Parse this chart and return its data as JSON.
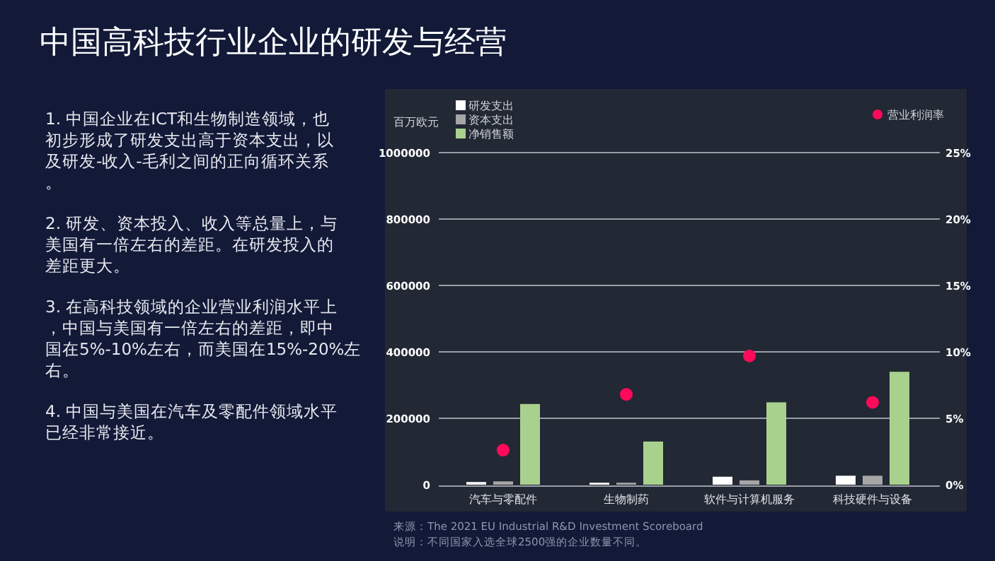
{
  "chart_data": {
    "type": "bar",
    "title": "中国高科技行业企业的研发与经营",
    "ylabel": "百万欧元",
    "categories": [
      "汽车与零配件",
      "生物制药",
      "软件与计算机服务",
      "科技硬件与设备"
    ],
    "series": [
      {
        "name": "研发支出",
        "color": "#ffffff",
        "values": [
          8000,
          6000,
          24000,
          27000
        ]
      },
      {
        "name": "资本支出",
        "color": "#a6a6a6",
        "values": [
          10000,
          6000,
          13000,
          27000
        ]
      },
      {
        "name": "净销售额",
        "color": "#a9d18e",
        "values": [
          243000,
          130000,
          248000,
          340000
        ]
      },
      {
        "name": "营业利润率",
        "type": "scatter",
        "axis": "y2",
        "color": "#ff0a5a",
        "values": [
          2.6,
          6.8,
          9.7,
          6.2
        ]
      }
    ],
    "ylim": [
      0,
      1000000
    ],
    "yticks": [
      0,
      200000,
      400000,
      600000,
      800000,
      1000000
    ],
    "y2lim": [
      0,
      25
    ],
    "y2ticks": [
      {
        "value": 0,
        "label": "0%"
      },
      {
        "value": 5,
        "label": "5%"
      },
      {
        "value": 10,
        "label": "10%"
      },
      {
        "value": 15,
        "label": "15%"
      },
      {
        "value": 20,
        "label": "20%"
      },
      {
        "value": 25,
        "label": "25%"
      }
    ],
    "grid": "y",
    "legend": "top",
    "marker": "circle",
    "annotations": [
      "1. 中国企业在ICT和生物制造领域，也初步形成了研发支出高于资本支出，以及研发-收入-毛利之间的正向循环关系。",
      "2. 研发、资本投入、收入等总量上，与美国有一倍左右的差距。在研发投入的差距更大。",
      "3. 在高科技领域的企业营业利润水平上，中国与美国有一倍左右的差距，即中国在5%-10%左右，而美国在15%-20%左右。",
      "4. 中国与美国在汽车及零配件领域水平已经非常接近。",
      "来源：The 2021 EU Industrial R&D Investment Scoreboard",
      "说明：不同国家入选全球2500强的企业数量不同。"
    ]
  }
}
